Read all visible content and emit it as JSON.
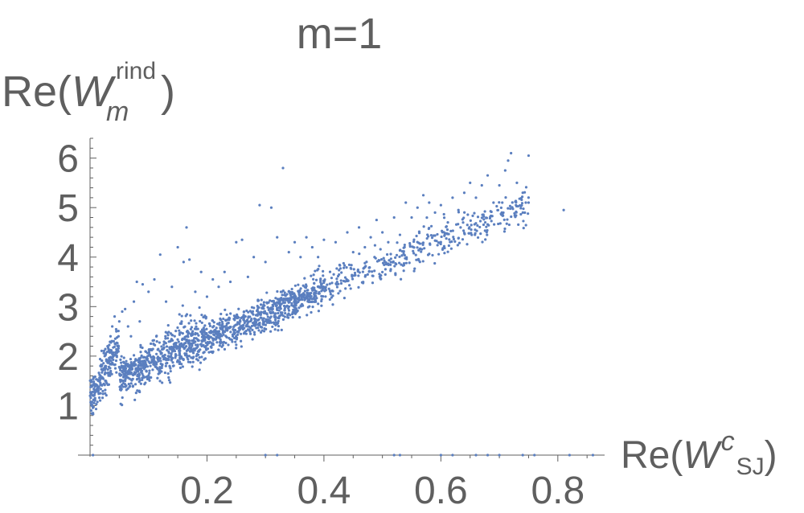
{
  "chart_data": {
    "type": "scatter",
    "title": "m=1",
    "ylabel": {
      "prefix": "Re(",
      "symbol": "W",
      "superscript": "rind",
      "subscript": "m",
      "suffix": ")"
    },
    "xlabel": {
      "prefix": "Re(",
      "symbol": "W",
      "superscript": "c",
      "subscript": "SJ",
      "suffix": ")"
    },
    "xlim": [
      0.0,
      0.88
    ],
    "ylim": [
      0.0,
      6.4
    ],
    "xticks": [
      0.2,
      0.4,
      0.6,
      0.8
    ],
    "xtick_labels": [
      "0.2",
      "0.4",
      "0.6",
      "0.8"
    ],
    "yticks": [
      1,
      2,
      3,
      4,
      5,
      6
    ],
    "ytick_labels": [
      "1",
      "2",
      "3",
      "4",
      "5",
      "6"
    ],
    "grid": false,
    "marker_color": "#5b7fbf",
    "axis_color": "#5f5f5f",
    "series": [
      {
        "points": [
          [
            0.002,
            0.9
          ],
          [
            0.003,
            1.0
          ],
          [
            0.005,
            0.85
          ],
          [
            0.006,
            1.2
          ],
          [
            0.008,
            1.1
          ],
          [
            0.01,
            1.3
          ],
          [
            0.012,
            1.4
          ],
          [
            0.014,
            1.5
          ],
          [
            0.015,
            1.25
          ],
          [
            0.018,
            1.6
          ],
          [
            0.02,
            1.8
          ],
          [
            0.022,
            1.55
          ],
          [
            0.025,
            2.0
          ],
          [
            0.028,
            1.9
          ],
          [
            0.03,
            2.2
          ],
          [
            0.032,
            2.1
          ],
          [
            0.035,
            2.4
          ],
          [
            0.038,
            2.6
          ],
          [
            0.04,
            2.3
          ],
          [
            0.042,
            2.8
          ],
          [
            0.045,
            2.5
          ],
          [
            0.05,
            2.7
          ],
          [
            0.055,
            2.9
          ],
          [
            0.06,
            2.95
          ],
          [
            0.065,
            2.6
          ],
          [
            0.07,
            2.4
          ],
          [
            0.075,
            3.1
          ],
          [
            0.08,
            3.5
          ],
          [
            0.085,
            2.7
          ],
          [
            0.09,
            3.45
          ],
          [
            0.1,
            3.3
          ],
          [
            0.11,
            3.55
          ],
          [
            0.12,
            4.05
          ],
          [
            0.13,
            3.1
          ],
          [
            0.14,
            3.4
          ],
          [
            0.15,
            4.2
          ],
          [
            0.16,
            3.9
          ],
          [
            0.165,
            4.6
          ],
          [
            0.17,
            3.95
          ],
          [
            0.18,
            3.3
          ],
          [
            0.19,
            3.7
          ],
          [
            0.2,
            3.2
          ],
          [
            0.21,
            3.55
          ],
          [
            0.22,
            3.4
          ],
          [
            0.23,
            3.7
          ],
          [
            0.24,
            3.5
          ],
          [
            0.25,
            4.3
          ],
          [
            0.26,
            4.35
          ],
          [
            0.27,
            3.6
          ],
          [
            0.28,
            4.0
          ],
          [
            0.29,
            5.05
          ],
          [
            0.3,
            3.9
          ],
          [
            0.31,
            5.0
          ],
          [
            0.32,
            4.4
          ],
          [
            0.33,
            5.8
          ],
          [
            0.34,
            4.1
          ],
          [
            0.35,
            4.3
          ],
          [
            0.36,
            4.0
          ],
          [
            0.37,
            4.4
          ],
          [
            0.38,
            4.2
          ],
          [
            0.39,
            4.0
          ],
          [
            0.4,
            4.35
          ],
          [
            0.42,
            4.3
          ],
          [
            0.44,
            4.5
          ],
          [
            0.45,
            4.1
          ],
          [
            0.46,
            4.6
          ],
          [
            0.47,
            4.2
          ],
          [
            0.48,
            4.4
          ],
          [
            0.49,
            4.75
          ],
          [
            0.5,
            4.5
          ],
          [
            0.51,
            4.3
          ],
          [
            0.52,
            4.8
          ],
          [
            0.53,
            4.45
          ],
          [
            0.54,
            5.1
          ],
          [
            0.55,
            4.8
          ],
          [
            0.56,
            5.0
          ],
          [
            0.57,
            5.25
          ],
          [
            0.58,
            5.1
          ],
          [
            0.59,
            4.9
          ],
          [
            0.6,
            5.05
          ],
          [
            0.62,
            5.2
          ],
          [
            0.63,
            4.95
          ],
          [
            0.64,
            5.3
          ],
          [
            0.65,
            5.5
          ],
          [
            0.66,
            5.2
          ],
          [
            0.67,
            5.45
          ],
          [
            0.68,
            5.65
          ],
          [
            0.69,
            5.1
          ],
          [
            0.7,
            5.45
          ],
          [
            0.71,
            5.75
          ],
          [
            0.72,
            6.1
          ],
          [
            0.73,
            5.5
          ],
          [
            0.74,
            5.3
          ],
          [
            0.75,
            6.05
          ],
          [
            0.81,
            4.95
          ],
          [
            0.715,
            5.95
          ],
          [
            0.705,
            5.1
          ],
          [
            0.75,
            5.1
          ],
          [
            0.005,
            0.0
          ],
          [
            0.3,
            0.0
          ],
          [
            0.32,
            0.0
          ],
          [
            0.52,
            0.0
          ],
          [
            0.53,
            0.0
          ],
          [
            0.6,
            0.0
          ],
          [
            0.62,
            0.0
          ],
          [
            0.66,
            0.0
          ],
          [
            0.68,
            0.0
          ],
          [
            0.7,
            0.0
          ],
          [
            0.74,
            0.0
          ],
          [
            0.76,
            0.0
          ],
          [
            0.82,
            0.0
          ],
          [
            0.86,
            0.0
          ]
        ]
      }
    ]
  }
}
